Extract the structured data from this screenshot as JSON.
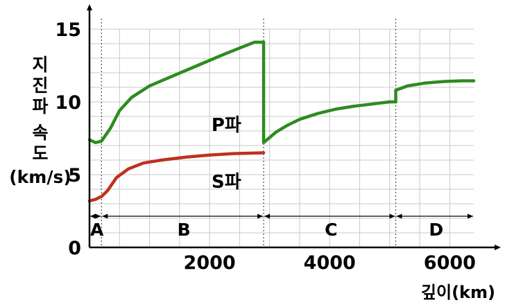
{
  "chart_data": {
    "type": "line",
    "xlabel": "깊이(km)",
    "ylabel_lines": [
      "지",
      "진",
      "파",
      "속",
      "도",
      "(km/s)"
    ],
    "origin_label": "0",
    "xlim": [
      0,
      6400
    ],
    "ylim": [
      0,
      15
    ],
    "x_ticks": [
      2000,
      4000,
      6000
    ],
    "x_tick_labels": [
      "2000",
      "4000",
      "6000"
    ],
    "y_ticks": [
      5,
      10,
      15
    ],
    "y_tick_labels": [
      "5",
      "10",
      "15"
    ],
    "grid": true,
    "series": [
      {
        "name": "P파",
        "color": "#2e8b20",
        "segments": [
          [
            [
              0,
              7.4
            ],
            [
              100,
              7.2
            ],
            [
              200,
              7.3
            ],
            [
              350,
              8.2
            ],
            [
              500,
              9.4
            ],
            [
              700,
              10.3
            ],
            [
              1000,
              11.1
            ],
            [
              1400,
              11.8
            ],
            [
              1800,
              12.5
            ],
            [
              2200,
              13.2
            ],
            [
              2500,
              13.7
            ],
            [
              2750,
              14.1
            ],
            [
              2900,
              14.1
            ]
          ],
          [
            [
              2900,
              14.1
            ],
            [
              2900,
              7.2
            ]
          ],
          [
            [
              2900,
              7.2
            ],
            [
              3100,
              7.9
            ],
            [
              3300,
              8.4
            ],
            [
              3500,
              8.8
            ],
            [
              3800,
              9.2
            ],
            [
              4100,
              9.5
            ],
            [
              4400,
              9.7
            ],
            [
              4700,
              9.85
            ],
            [
              5000,
              10.0
            ],
            [
              5100,
              10.0
            ]
          ],
          [
            [
              5100,
              10.0
            ],
            [
              5100,
              10.8
            ]
          ],
          [
            [
              5100,
              10.8
            ],
            [
              5300,
              11.1
            ],
            [
              5600,
              11.3
            ],
            [
              5900,
              11.4
            ],
            [
              6200,
              11.45
            ],
            [
              6400,
              11.45
            ]
          ]
        ]
      },
      {
        "name": "S파",
        "color": "#c0301f",
        "segments": [
          [
            [
              0,
              3.2
            ],
            [
              100,
              3.3
            ],
            [
              200,
              3.5
            ],
            [
              300,
              3.9
            ],
            [
              450,
              4.8
            ],
            [
              650,
              5.4
            ],
            [
              900,
              5.8
            ],
            [
              1200,
              6.0
            ],
            [
              1600,
              6.2
            ],
            [
              2000,
              6.35
            ],
            [
              2400,
              6.45
            ],
            [
              2900,
              6.5
            ]
          ]
        ]
      }
    ],
    "series_labels": [
      {
        "text": "P파",
        "x": 2280,
        "y": 8.0
      },
      {
        "text": "S파",
        "x": 2280,
        "y": 4.1
      }
    ],
    "region_boundaries": [
      200,
      2900,
      5100
    ],
    "regions": [
      {
        "label": "A",
        "from": 0,
        "to": 200
      },
      {
        "label": "B",
        "from": 200,
        "to": 2900
      },
      {
        "label": "C",
        "from": 2900,
        "to": 5100
      },
      {
        "label": "D",
        "from": 5100,
        "to": 6400
      }
    ]
  }
}
